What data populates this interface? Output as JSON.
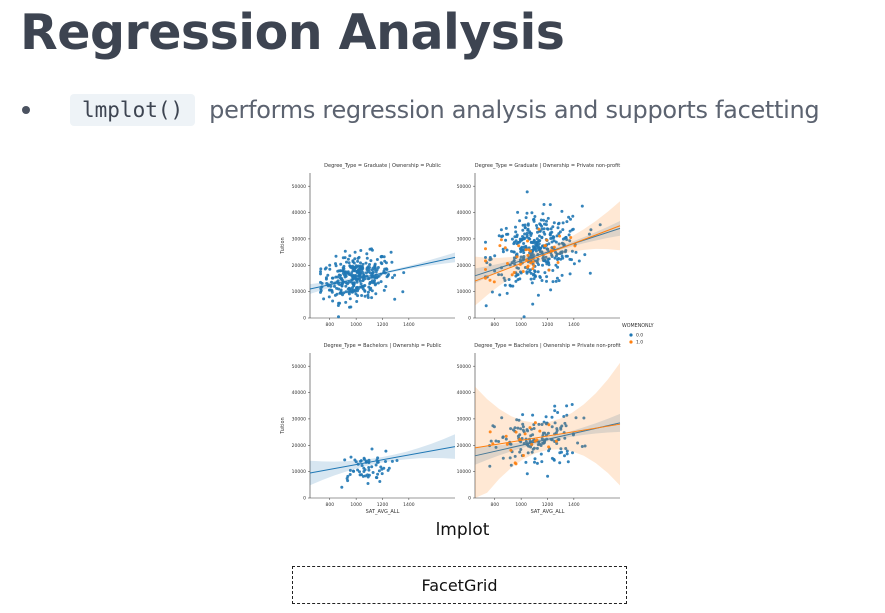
{
  "slide": {
    "title": "Regression Analysis",
    "bullet": {
      "code": "lmplot()",
      "text": "performs regression analysis and supports facetting"
    },
    "caption": "lmplot",
    "facet_box_label": "FacetGrid"
  },
  "colors": {
    "blue": "#1f77b4",
    "orange": "#ff7f0e",
    "title": "#3d4451",
    "text": "#5c6370"
  },
  "chart_data": {
    "type": "scatter",
    "xlabel": "SAT_AVG_ALL",
    "ylabel": "Tuition",
    "xlim": [
      650,
      1750
    ],
    "ylim": [
      0,
      55000
    ],
    "x_ticks": [
      "800",
      "1000",
      "1200",
      "1400"
    ],
    "y_ticks": [
      "0",
      "10000",
      "20000",
      "30000",
      "40000",
      "50000"
    ],
    "legend": {
      "title": "WOMENONLY",
      "entries": [
        "0.0",
        "1.0"
      ],
      "placement": "right-middle"
    },
    "facets": [
      {
        "title": "Degree_Type = Graduate | Ownership = Public",
        "row": 0,
        "col": 0,
        "series": [
          {
            "name": "0.0",
            "color": "#1f77b4",
            "center": [
              1000,
              15500
            ],
            "spread": [
              130,
              4200
            ],
            "n": 320,
            "fit": [
              [
                650,
                11000
              ],
              [
                1750,
                23000
              ]
            ],
            "band": 1200
          }
        ]
      },
      {
        "title": "Degree_Type = Graduate | Ownership = Private non-profit",
        "row": 0,
        "col": 1,
        "series": [
          {
            "name": "0.0",
            "color": "#1f77b4",
            "center": [
              1120,
              25500
            ],
            "spread": [
              170,
              7000
            ],
            "n": 360,
            "fit": [
              [
                650,
                16000
              ],
              [
                1750,
                34000
              ]
            ],
            "band": 1800
          },
          {
            "name": "1.0",
            "color": "#ff7f0e",
            "center": [
              1050,
              24000
            ],
            "spread": [
              150,
              5000
            ],
            "n": 40,
            "fit": [
              [
                650,
                14000
              ],
              [
                1750,
                35000
              ]
            ],
            "band": 6000
          }
        ]
      },
      {
        "title": "Degree_Type = Bachelors | Ownership = Public",
        "row": 1,
        "col": 0,
        "series": [
          {
            "name": "0.0",
            "color": "#1f77b4",
            "center": [
              1050,
              11000
            ],
            "spread": [
              110,
              3000
            ],
            "n": 60,
            "fit": [
              [
                650,
                9500
              ],
              [
                1750,
                19500
              ]
            ],
            "band": 3000
          }
        ]
      },
      {
        "title": "Degree_Type = Bachelors | Ownership = Private non-profit",
        "row": 1,
        "col": 1,
        "series": [
          {
            "name": "0.0",
            "color": "#1f77b4",
            "center": [
              1120,
              22000
            ],
            "spread": [
              160,
              5500
            ],
            "n": 150,
            "fit": [
              [
                650,
                16000
              ],
              [
                1750,
                28500
              ]
            ],
            "band": 2200
          },
          {
            "name": "1.0",
            "color": "#ff7f0e",
            "center": [
              1050,
              22500
            ],
            "spread": [
              150,
              4000
            ],
            "n": 20,
            "fit": [
              [
                650,
                19000
              ],
              [
                1750,
                28000
              ]
            ],
            "band": 15000
          }
        ]
      }
    ]
  }
}
